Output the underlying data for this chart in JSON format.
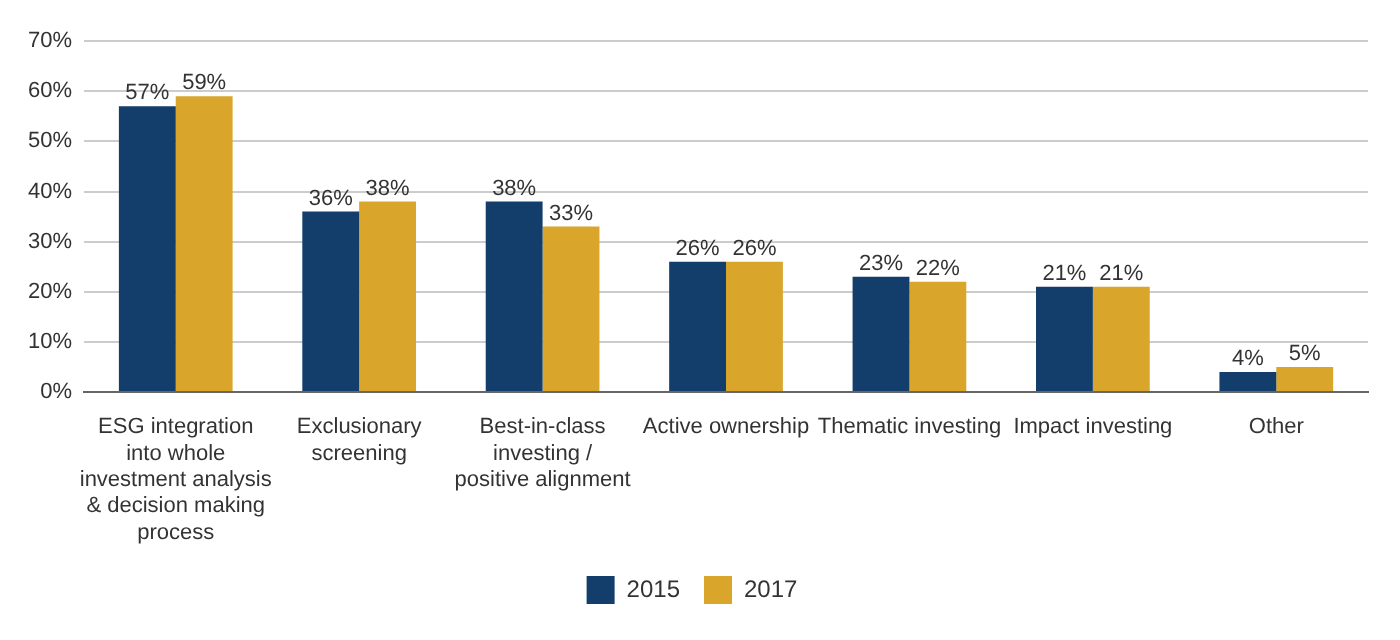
{
  "chart_data": {
    "type": "bar",
    "categories": [
      "ESG integration into whole investment analysis & decision making process",
      "Exclusionary screening",
      "Best-in-class investing / positive alignment",
      "Active ownership",
      "Thematic investing",
      "Impact investing",
      "Other"
    ],
    "series": [
      {
        "name": "2015",
        "color": "#133e6b",
        "values": [
          57,
          36,
          38,
          26,
          23,
          21,
          4
        ],
        "value_labels": [
          "57%",
          "36%",
          "38%",
          "26%",
          "23%",
          "21%",
          "4%"
        ]
      },
      {
        "name": "2017",
        "color": "#d9a62b",
        "values": [
          59,
          38,
          33,
          26,
          22,
          21,
          5
        ],
        "value_labels": [
          "59%",
          "38%",
          "33%",
          "26%",
          "22%",
          "21%",
          "5%"
        ]
      }
    ],
    "ylim": [
      0,
      70
    ],
    "yticks": [
      {
        "value": 0,
        "label": "0%"
      },
      {
        "value": 10,
        "label": "10%"
      },
      {
        "value": 20,
        "label": "20%"
      },
      {
        "value": 30,
        "label": "30%"
      },
      {
        "value": 40,
        "label": "40%"
      },
      {
        "value": 50,
        "label": "50%"
      },
      {
        "value": 60,
        "label": "60%"
      },
      {
        "value": 70,
        "label": "70%"
      }
    ],
    "grid": "y",
    "legend": "bottom"
  }
}
